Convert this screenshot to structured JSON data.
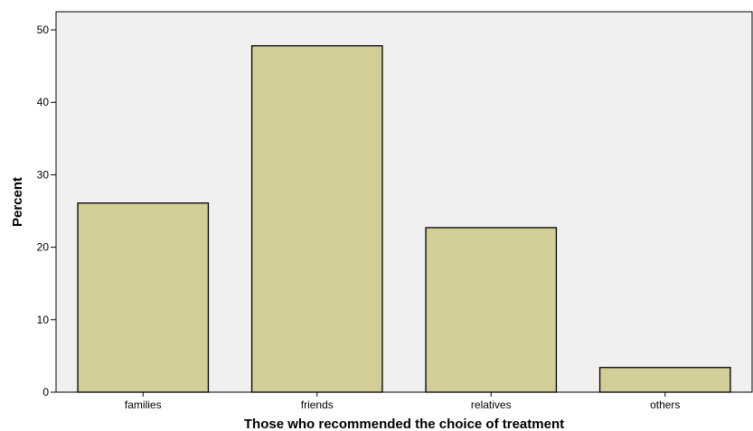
{
  "chart_data": {
    "type": "bar",
    "categories": [
      "families",
      "friends",
      "relatives",
      "others"
    ],
    "values": [
      26.1,
      47.8,
      22.7,
      3.4
    ],
    "xlabel": "Those who recommended the choice of treatment",
    "ylabel": "Percent",
    "ylim": [
      0,
      52.5
    ],
    "yticks": [
      0,
      10,
      20,
      30,
      40,
      50
    ],
    "grid": false,
    "legend": "none",
    "colors": {
      "plot_background": "#f0f0f0",
      "bar_fill": "#d3ce97",
      "bar_stroke": "#000000",
      "axis": "#000000"
    }
  }
}
